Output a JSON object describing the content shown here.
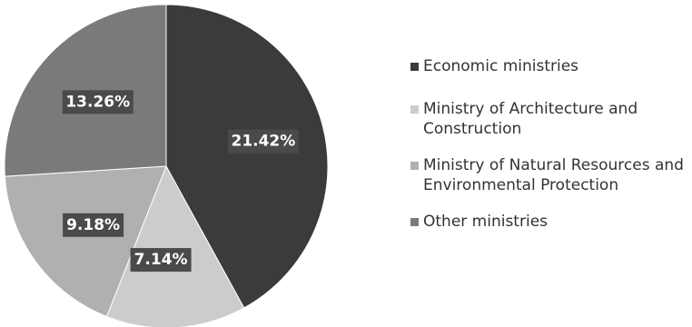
{
  "chart_data": {
    "type": "pie",
    "slices": [
      {
        "name": "Economic ministries",
        "value": 21.42,
        "label": "21.42%",
        "color": "#3b3b3b"
      },
      {
        "name": "Ministry of Architecture and Construction",
        "value": 7.14,
        "label": "7.14%",
        "color": "#cccccc"
      },
      {
        "name": "Ministry of Natural Resources and Environmental Protection",
        "value": 9.18,
        "label": "9.18%",
        "color": "#b0b0b0"
      },
      {
        "name": "Other ministries",
        "value": 13.26,
        "label": "13.26%",
        "color": "#7a7a7a"
      }
    ],
    "legend_position": "right",
    "label_box_color": "#4a4a4a"
  }
}
